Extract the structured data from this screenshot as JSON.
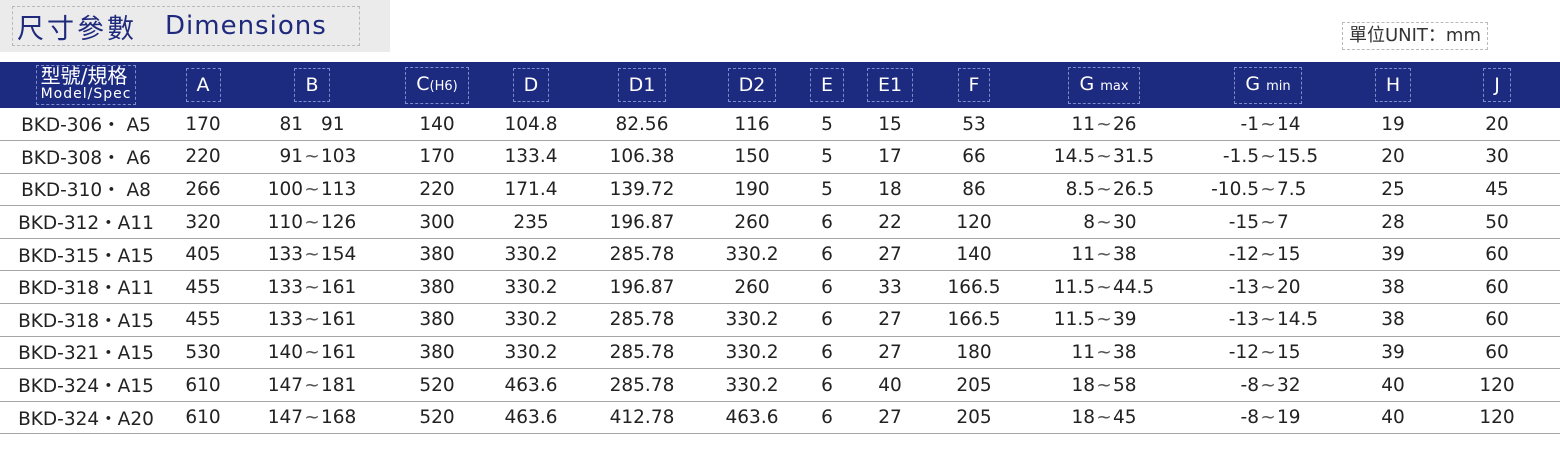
{
  "title": {
    "cn": "尺寸參數",
    "en": "Dimensions"
  },
  "unit": "單位UNIT：mm",
  "headers": {
    "model_cn": "型號/規格",
    "model_en": "Model/Spec",
    "A": "A",
    "B": "B",
    "C": "C",
    "C_sub": "(H6)",
    "D": "D",
    "D1": "D1",
    "D2": "D2",
    "E": "E",
    "E1": "E1",
    "F": "F",
    "Gmax": "G",
    "Gmax_sub": "max",
    "Gmin": "G",
    "Gmin_sub": "min",
    "H": "H",
    "J": "J"
  },
  "rows": [
    {
      "model": "BKD-306・ A5",
      "A": "170",
      "B_lo": "81",
      "B_sep": "",
      "B_hi": "91",
      "C": "140",
      "D": "104.8",
      "D1": "82.56",
      "D2": "116",
      "E": "5",
      "E1": "15",
      "F": "53",
      "Gmax_lo": "11",
      "Gmax_hi": "26",
      "Gmin_lo": "-1",
      "Gmin_hi": "14",
      "H": "19",
      "J": "20"
    },
    {
      "model": "BKD-308・ A6",
      "A": "220",
      "B_lo": "91",
      "B_sep": "~",
      "B_hi": "103",
      "C": "170",
      "D": "133.4",
      "D1": "106.38",
      "D2": "150",
      "E": "5",
      "E1": "17",
      "F": "66",
      "Gmax_lo": "14.5",
      "Gmax_hi": "31.5",
      "Gmin_lo": "-1.5",
      "Gmin_hi": "15.5",
      "H": "20",
      "J": "30"
    },
    {
      "model": "BKD-310・ A8",
      "A": "266",
      "B_lo": "100",
      "B_sep": "~",
      "B_hi": "113",
      "C": "220",
      "D": "171.4",
      "D1": "139.72",
      "D2": "190",
      "E": "5",
      "E1": "18",
      "F": "86",
      "Gmax_lo": "8.5",
      "Gmax_hi": "26.5",
      "Gmin_lo": "-10.5",
      "Gmin_hi": "7.5",
      "H": "25",
      "J": "45"
    },
    {
      "model": "BKD-312・A11",
      "A": "320",
      "B_lo": "110",
      "B_sep": "~",
      "B_hi": "126",
      "C": "300",
      "D": "235",
      "D1": "196.87",
      "D2": "260",
      "E": "6",
      "E1": "22",
      "F": "120",
      "Gmax_lo": "8",
      "Gmax_hi": "30",
      "Gmin_lo": "-15",
      "Gmin_hi": "7",
      "H": "28",
      "J": "50"
    },
    {
      "model": "BKD-315・A15",
      "A": "405",
      "B_lo": "133",
      "B_sep": "~",
      "B_hi": "154",
      "C": "380",
      "D": "330.2",
      "D1": "285.78",
      "D2": "330.2",
      "E": "6",
      "E1": "27",
      "F": "140",
      "Gmax_lo": "11",
      "Gmax_hi": "38",
      "Gmin_lo": "-12",
      "Gmin_hi": "15",
      "H": "39",
      "J": "60"
    },
    {
      "model": "BKD-318・A11",
      "A": "455",
      "B_lo": "133",
      "B_sep": "~",
      "B_hi": "161",
      "C": "380",
      "D": "330.2",
      "D1": "196.87",
      "D2": "260",
      "E": "6",
      "E1": "33",
      "F": "166.5",
      "Gmax_lo": "11.5",
      "Gmax_hi": "44.5",
      "Gmin_lo": "-13",
      "Gmin_hi": "20",
      "H": "38",
      "J": "60"
    },
    {
      "model": "BKD-318・A15",
      "A": "455",
      "B_lo": "133",
      "B_sep": "~",
      "B_hi": "161",
      "C": "380",
      "D": "330.2",
      "D1": "285.78",
      "D2": "330.2",
      "E": "6",
      "E1": "27",
      "F": "166.5",
      "Gmax_lo": "11.5",
      "Gmax_hi": "39",
      "Gmin_lo": "-13",
      "Gmin_hi": "14.5",
      "H": "38",
      "J": "60"
    },
    {
      "model": "BKD-321・A15",
      "A": "530",
      "B_lo": "140",
      "B_sep": "~",
      "B_hi": "161",
      "C": "380",
      "D": "330.2",
      "D1": "285.78",
      "D2": "330.2",
      "E": "6",
      "E1": "27",
      "F": "180",
      "Gmax_lo": "11",
      "Gmax_hi": "38",
      "Gmin_lo": "-12",
      "Gmin_hi": "15",
      "H": "39",
      "J": "60"
    },
    {
      "model": "BKD-324・A15",
      "A": "610",
      "B_lo": "147",
      "B_sep": "~",
      "B_hi": "181",
      "C": "520",
      "D": "463.6",
      "D1": "285.78",
      "D2": "330.2",
      "E": "6",
      "E1": "40",
      "F": "205",
      "Gmax_lo": "18",
      "Gmax_hi": "58",
      "Gmin_lo": "-8",
      "Gmin_hi": "32",
      "H": "40",
      "J": "120"
    },
    {
      "model": "BKD-324・A20",
      "A": "610",
      "B_lo": "147",
      "B_sep": "~",
      "B_hi": "168",
      "C": "520",
      "D": "463.6",
      "D1": "412.78",
      "D2": "463.6",
      "E": "6",
      "E1": "27",
      "F": "205",
      "Gmax_lo": "18",
      "Gmax_hi": "45",
      "Gmin_lo": "-8",
      "Gmin_hi": "19",
      "H": "40",
      "J": "120"
    }
  ],
  "g_separator": "~",
  "colors": {
    "header_bg": "#1c2a80",
    "title_text": "#1f2a7c",
    "title_bg": "#ebebeb"
  }
}
